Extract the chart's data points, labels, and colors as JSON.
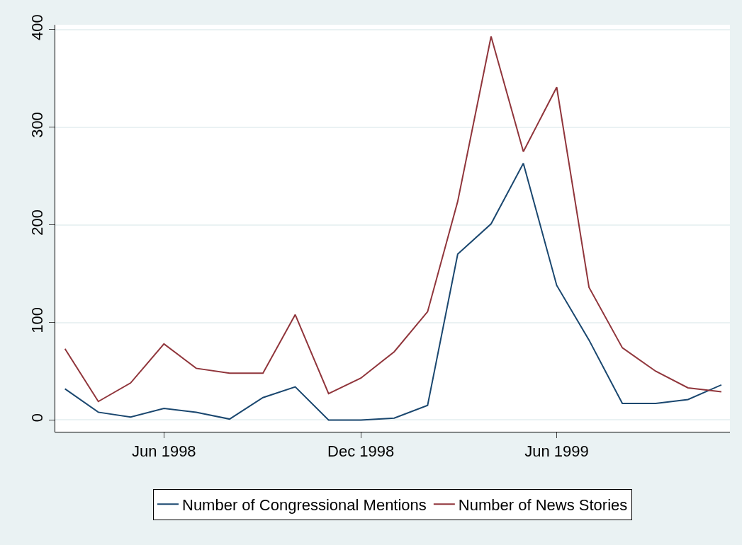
{
  "chart_data": {
    "type": "line",
    "x": [
      "1998-03",
      "1998-04",
      "1998-05",
      "1998-06",
      "1998-07",
      "1998-08",
      "1998-09",
      "1998-10",
      "1998-11",
      "1998-12",
      "1999-01",
      "1999-02",
      "1999-03",
      "1999-04",
      "1999-05",
      "1999-06",
      "1999-07",
      "1999-08",
      "1999-09",
      "1999-10",
      "1999-11"
    ],
    "series": [
      {
        "name": "Number of Congressional Mentions",
        "color": "#1a476f",
        "values": [
          32,
          8,
          3,
          12,
          8,
          1,
          23,
          34,
          0,
          0,
          2,
          15,
          170,
          201,
          263,
          138,
          82,
          17,
          17,
          21,
          36
        ]
      },
      {
        "name": "Number of News Stories",
        "color": "#90353b",
        "values": [
          73,
          19,
          38,
          78,
          53,
          48,
          48,
          108,
          27,
          43,
          70,
          111,
          224,
          393,
          275,
          341,
          136,
          74,
          50,
          33,
          29
        ]
      }
    ],
    "xlim": [
      "1998-02-20",
      "1999-11-09"
    ],
    "xticks": [
      {
        "value": "1998-06",
        "label": "Jun 1998"
      },
      {
        "value": "1998-12",
        "label": "Dec 1998"
      },
      {
        "value": "1999-06",
        "label": "Jun 1999"
      }
    ],
    "ylim": [
      -12,
      405
    ],
    "yticks": [
      0,
      100,
      200,
      300,
      400
    ],
    "grid": "y",
    "legend": "bottom",
    "marker": "none",
    "line_style": "solid"
  }
}
